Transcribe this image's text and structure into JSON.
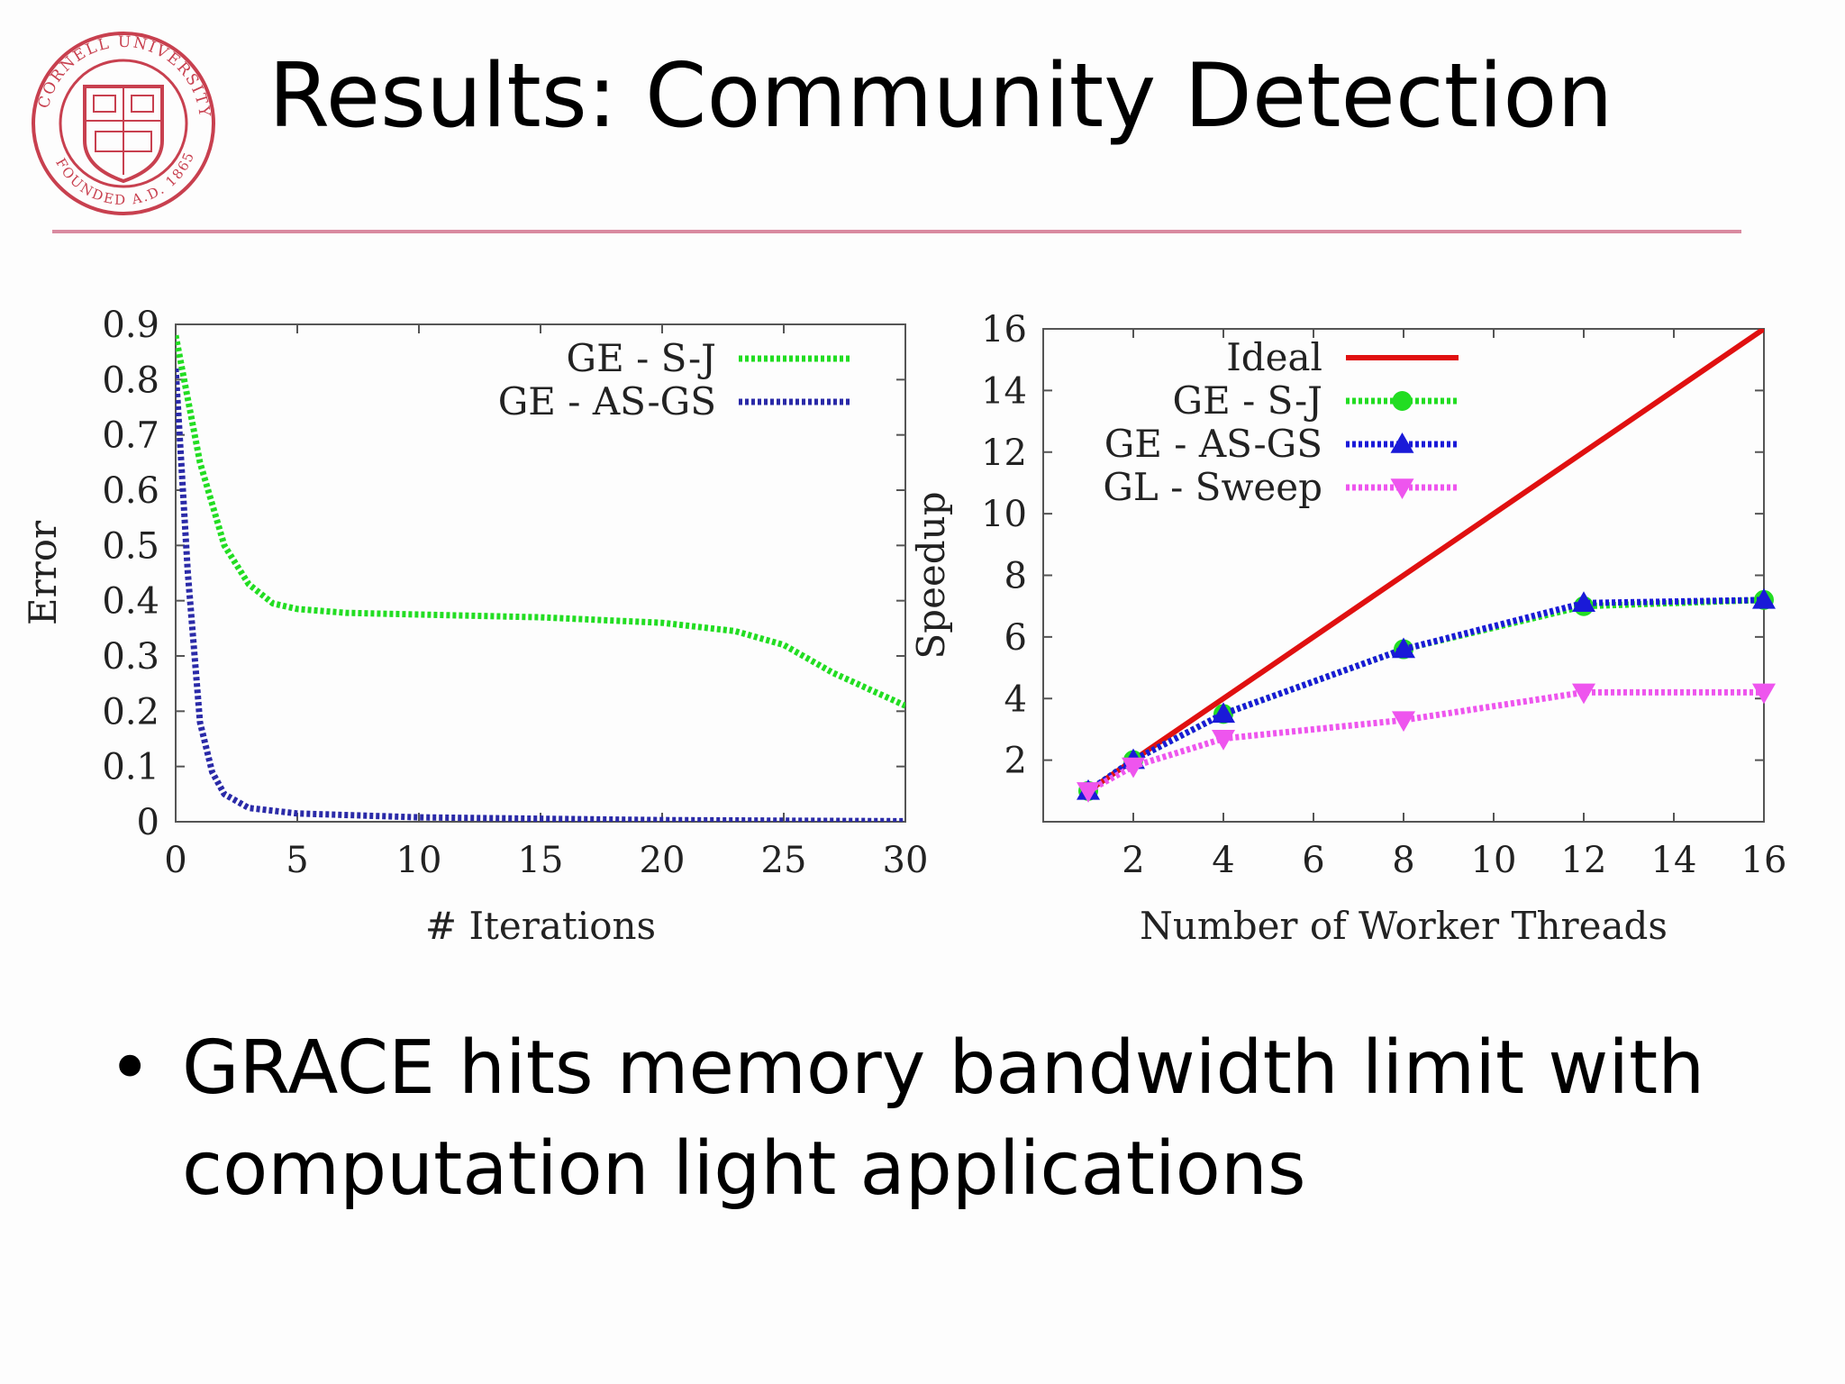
{
  "slide": {
    "title": "Results: Community Detection",
    "bullet_marker": "•",
    "bullet": "GRACE hits memory bandwidth limit with computation light applications",
    "logo": {
      "text": "CORNELL UNIVERSITY FOUNDED A.D. 1865",
      "color": "#c8404f"
    },
    "rule_color": "#d98aa0"
  },
  "chart_data": [
    {
      "type": "line",
      "xlabel": "# Iterations",
      "ylabel": "Error",
      "xlim": [
        0,
        30
      ],
      "ylim": [
        0,
        0.9
      ],
      "xticks": [
        "0",
        "5",
        "10",
        "15",
        "20",
        "25",
        "30"
      ],
      "yticks": [
        "0",
        "0.1",
        "0.2",
        "0.3",
        "0.4",
        "0.5",
        "0.6",
        "0.7",
        "0.8",
        "0.9"
      ],
      "legend_position": "top-right",
      "series": [
        {
          "name": "GE - S-J",
          "color": "#22dd22",
          "x": [
            0,
            1,
            2,
            3,
            4,
            5,
            7,
            10,
            15,
            20,
            23,
            25,
            27,
            30
          ],
          "y": [
            0.88,
            0.65,
            0.5,
            0.43,
            0.395,
            0.385,
            0.378,
            0.375,
            0.37,
            0.36,
            0.345,
            0.32,
            0.27,
            0.21
          ]
        },
        {
          "name": "GE - AS-GS",
          "color": "#2a2aa8",
          "x": [
            0,
            0.5,
            1,
            1.5,
            2,
            3,
            5,
            10,
            20,
            30
          ],
          "y": [
            0.82,
            0.45,
            0.18,
            0.09,
            0.05,
            0.025,
            0.015,
            0.008,
            0.003,
            0.001
          ]
        }
      ]
    },
    {
      "type": "line",
      "xlabel": "Number of Worker Threads",
      "ylabel": "Speedup",
      "xlim": [
        0,
        16
      ],
      "ylim": [
        0,
        16
      ],
      "xticks": [
        "2",
        "4",
        "6",
        "8",
        "10",
        "12",
        "14",
        "16"
      ],
      "yticks": [
        "2",
        "4",
        "6",
        "8",
        "10",
        "12",
        "14",
        "16"
      ],
      "legend_position": "top-left",
      "series": [
        {
          "name": "Ideal",
          "color": "#e01010",
          "marker": "none",
          "x": [
            1,
            16
          ],
          "y": [
            1,
            16
          ]
        },
        {
          "name": "GE - S-J",
          "color": "#22dd22",
          "marker": "circle",
          "x": [
            1,
            2,
            4,
            8,
            12,
            16
          ],
          "y": [
            1,
            2,
            3.5,
            5.6,
            7.0,
            7.2
          ]
        },
        {
          "name": "GE - AS-GS",
          "color": "#1a1ad8",
          "marker": "triangle-up",
          "x": [
            1,
            2,
            4,
            8,
            12,
            16
          ],
          "y": [
            1,
            2,
            3.5,
            5.6,
            7.1,
            7.2
          ]
        },
        {
          "name": "GL - Sweep",
          "color": "#ee55ee",
          "marker": "triangle-down",
          "x": [
            1,
            2,
            4,
            8,
            12,
            16
          ],
          "y": [
            1,
            1.8,
            2.7,
            3.3,
            4.2,
            4.2
          ]
        }
      ]
    }
  ]
}
